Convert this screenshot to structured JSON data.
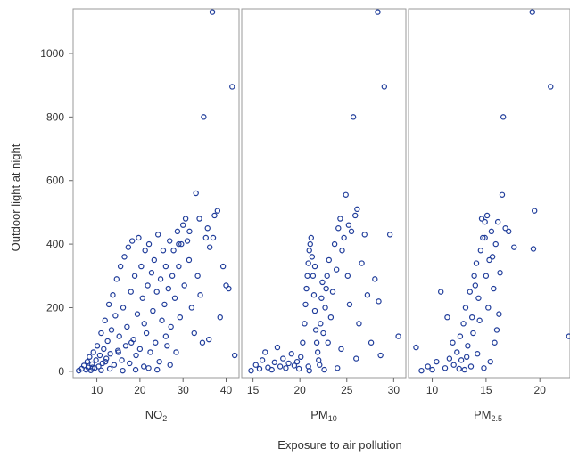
{
  "chart_data": {
    "type": "scatter",
    "ylabel": "Outdoor light at night",
    "xlabel": "Exposure to air pollution",
    "ylim": [
      -20,
      1140
    ],
    "yticks": [
      0,
      200,
      400,
      600,
      800,
      1000
    ],
    "marker_color": "#1f3c9a",
    "panels": [
      {
        "label_main": "NO",
        "label_sub": "2",
        "xlim": [
          4.5,
          43
        ],
        "xticks": [
          10,
          20,
          30,
          40
        ],
        "points": [
          [
            5.8,
            2
          ],
          [
            6.5,
            8
          ],
          [
            7,
            18
          ],
          [
            7.5,
            5
          ],
          [
            7.8,
            30
          ],
          [
            8,
            12
          ],
          [
            8.3,
            45
          ],
          [
            8.6,
            3
          ],
          [
            8.9,
            22
          ],
          [
            9.2,
            60
          ],
          [
            9.5,
            10
          ],
          [
            9.8,
            35
          ],
          [
            10.1,
            80
          ],
          [
            10.4,
            15
          ],
          [
            10.7,
            50
          ],
          [
            11,
            120
          ],
          [
            11.3,
            25
          ],
          [
            11.6,
            70
          ],
          [
            11.9,
            160
          ],
          [
            12.2,
            40
          ],
          [
            12.5,
            95
          ],
          [
            12.8,
            210
          ],
          [
            13.1,
            55
          ],
          [
            13.4,
            130
          ],
          [
            13.7,
            240
          ],
          [
            14,
            20
          ],
          [
            14.3,
            175
          ],
          [
            14.6,
            290
          ],
          [
            14.9,
            65
          ],
          [
            15.2,
            110
          ],
          [
            15.5,
            330
          ],
          [
            15.8,
            35
          ],
          [
            16.1,
            200
          ],
          [
            16.4,
            360
          ],
          [
            16.7,
            80
          ],
          [
            17,
            140
          ],
          [
            17.3,
            390
          ],
          [
            17.6,
            25
          ],
          [
            17.9,
            250
          ],
          [
            18.2,
            410
          ],
          [
            18.5,
            100
          ],
          [
            18.8,
            300
          ],
          [
            19.1,
            50
          ],
          [
            19.4,
            180
          ],
          [
            19.7,
            420
          ],
          [
            20,
            70
          ],
          [
            20.3,
            330
          ],
          [
            20.6,
            230
          ],
          [
            20.9,
            15
          ],
          [
            21.2,
            380
          ],
          [
            21.5,
            120
          ],
          [
            21.8,
            270
          ],
          [
            22.1,
            400
          ],
          [
            22.4,
            60
          ],
          [
            22.7,
            310
          ],
          [
            23,
            190
          ],
          [
            23.3,
            350
          ],
          [
            23.6,
            90
          ],
          [
            23.9,
            250
          ],
          [
            24.2,
            430
          ],
          [
            24.5,
            30
          ],
          [
            24.8,
            290
          ],
          [
            25.1,
            160
          ],
          [
            25.4,
            380
          ],
          [
            25.7,
            210
          ],
          [
            26,
            330
          ],
          [
            26.3,
            80
          ],
          [
            26.6,
            260
          ],
          [
            26.9,
            410
          ],
          [
            27.2,
            140
          ],
          [
            27.5,
            300
          ],
          [
            27.8,
            380
          ],
          [
            28.1,
            230
          ],
          [
            28.4,
            60
          ],
          [
            28.7,
            440
          ],
          [
            29,
            330
          ],
          [
            29.3,
            170
          ],
          [
            29.6,
            400
          ],
          [
            30,
            460
          ],
          [
            30.3,
            270
          ],
          [
            30.6,
            480
          ],
          [
            31,
            410
          ],
          [
            31.4,
            350
          ],
          [
            32,
            200
          ],
          [
            32.6,
            120
          ],
          [
            33,
            560
          ],
          [
            33.4,
            300
          ],
          [
            34,
            240
          ],
          [
            34.8,
            800
          ],
          [
            35.3,
            420
          ],
          [
            35.7,
            450
          ],
          [
            36.2,
            390
          ],
          [
            36.8,
            1130
          ],
          [
            37.3,
            490
          ],
          [
            38,
            505
          ],
          [
            38.6,
            170
          ],
          [
            39.3,
            330
          ],
          [
            40,
            270
          ],
          [
            40.6,
            260
          ],
          [
            41.4,
            895
          ],
          [
            42,
            50
          ],
          [
            36,
            100
          ],
          [
            33.8,
            480
          ],
          [
            27,
            20
          ],
          [
            24,
            5
          ],
          [
            22,
            10
          ],
          [
            19,
            5
          ],
          [
            16,
            2
          ],
          [
            13,
            8
          ],
          [
            11,
            3
          ],
          [
            9,
            12
          ],
          [
            18,
            90
          ],
          [
            15,
            60
          ],
          [
            12,
            30
          ],
          [
            21,
            150
          ],
          [
            26,
            110
          ],
          [
            29,
            400
          ],
          [
            31.5,
            440
          ],
          [
            34.5,
            90
          ],
          [
            37,
            420
          ]
        ]
      },
      {
        "label_main": "PM",
        "label_sub": "10",
        "xlim": [
          13.8,
          31.3
        ],
        "xticks": [
          15,
          20,
          25,
          30
        ],
        "points": [
          [
            14.8,
            2
          ],
          [
            15.3,
            20
          ],
          [
            15.7,
            8
          ],
          [
            16,
            35
          ],
          [
            16.3,
            60
          ],
          [
            16.6,
            12
          ],
          [
            17,
            5
          ],
          [
            17.3,
            28
          ],
          [
            17.6,
            75
          ],
          [
            17.9,
            15
          ],
          [
            18.2,
            40
          ],
          [
            18.5,
            10
          ],
          [
            18.8,
            25
          ],
          [
            19.1,
            55
          ],
          [
            19.4,
            18
          ],
          [
            19.7,
            30
          ],
          [
            19.9,
            8
          ],
          [
            20.1,
            45
          ],
          [
            20.3,
            90
          ],
          [
            20.5,
            150
          ],
          [
            20.6,
            210
          ],
          [
            20.7,
            260
          ],
          [
            20.8,
            300
          ],
          [
            20.9,
            340
          ],
          [
            21,
            380
          ],
          [
            21.1,
            400
          ],
          [
            21.2,
            420
          ],
          [
            21.3,
            360
          ],
          [
            21.4,
            300
          ],
          [
            21.5,
            240
          ],
          [
            21.6,
            190
          ],
          [
            21.7,
            130
          ],
          [
            21.8,
            90
          ],
          [
            21.9,
            60
          ],
          [
            22,
            35
          ],
          [
            22.1,
            20
          ],
          [
            22.2,
            150
          ],
          [
            22.3,
            230
          ],
          [
            22.4,
            280
          ],
          [
            22.5,
            120
          ],
          [
            22.7,
            200
          ],
          [
            22.9,
            300
          ],
          [
            23.1,
            350
          ],
          [
            23.3,
            170
          ],
          [
            23.5,
            250
          ],
          [
            23.7,
            400
          ],
          [
            23.9,
            320
          ],
          [
            24.1,
            450
          ],
          [
            24.3,
            480
          ],
          [
            24.5,
            380
          ],
          [
            24.7,
            420
          ],
          [
            24.9,
            555
          ],
          [
            25.1,
            300
          ],
          [
            25.3,
            210
          ],
          [
            25.5,
            440
          ],
          [
            25.7,
            800
          ],
          [
            25.9,
            490
          ],
          [
            26.1,
            510
          ],
          [
            26.3,
            150
          ],
          [
            26.6,
            340
          ],
          [
            26.9,
            430
          ],
          [
            27.2,
            240
          ],
          [
            27.6,
            90
          ],
          [
            28,
            290
          ],
          [
            28.3,
            1130
          ],
          [
            28.6,
            50
          ],
          [
            29,
            895
          ],
          [
            29.6,
            430
          ],
          [
            30.5,
            110
          ],
          [
            28.4,
            220
          ],
          [
            26,
            40
          ],
          [
            24,
            10
          ],
          [
            22.6,
            5
          ],
          [
            21,
            2
          ],
          [
            20.9,
            15
          ],
          [
            23,
            90
          ],
          [
            24.4,
            70
          ],
          [
            25.2,
            460
          ],
          [
            22.8,
            260
          ],
          [
            21.6,
            330
          ]
        ]
      },
      {
        "label_main": "PM",
        "label_sub": "2.5",
        "xlim": [
          7.8,
          22.8
        ],
        "xticks": [
          10,
          15,
          20
        ],
        "points": [
          [
            8.5,
            75
          ],
          [
            9,
            2
          ],
          [
            9.6,
            15
          ],
          [
            10,
            5
          ],
          [
            10.4,
            30
          ],
          [
            10.8,
            250
          ],
          [
            11.2,
            10
          ],
          [
            11.6,
            40
          ],
          [
            12,
            20
          ],
          [
            12.3,
            60
          ],
          [
            12.6,
            110
          ],
          [
            12.9,
            150
          ],
          [
            13.1,
            200
          ],
          [
            13.3,
            80
          ],
          [
            13.5,
            250
          ],
          [
            13.7,
            170
          ],
          [
            13.9,
            300
          ],
          [
            14.1,
            340
          ],
          [
            14.3,
            230
          ],
          [
            14.5,
            380
          ],
          [
            14.7,
            420
          ],
          [
            14.9,
            470
          ],
          [
            15.1,
            490
          ],
          [
            15.3,
            350
          ],
          [
            15.5,
            440
          ],
          [
            15.7,
            260
          ],
          [
            15.9,
            400
          ],
          [
            16.1,
            470
          ],
          [
            16.3,
            310
          ],
          [
            16.5,
            555
          ],
          [
            16.6,
            800
          ],
          [
            16.8,
            450
          ],
          [
            17.1,
            440
          ],
          [
            17.6,
            390
          ],
          [
            19.3,
            1130
          ],
          [
            19.5,
            505
          ],
          [
            19.4,
            385
          ],
          [
            21,
            895
          ],
          [
            22.7,
            110
          ],
          [
            16.2,
            180
          ],
          [
            15.8,
            90
          ],
          [
            15.4,
            30
          ],
          [
            14.8,
            10
          ],
          [
            14.2,
            55
          ],
          [
            13.6,
            15
          ],
          [
            13,
            5
          ],
          [
            12.7,
            35
          ],
          [
            11.9,
            90
          ],
          [
            11.4,
            170
          ],
          [
            14.6,
            480
          ],
          [
            15,
            300
          ],
          [
            15.2,
            200
          ],
          [
            13.8,
            120
          ],
          [
            14,
            270
          ],
          [
            14.4,
            160
          ],
          [
            15.6,
            360
          ],
          [
            16,
            130
          ],
          [
            13.2,
            45
          ],
          [
            12.5,
            8
          ],
          [
            14.9,
            420
          ]
        ]
      }
    ]
  }
}
